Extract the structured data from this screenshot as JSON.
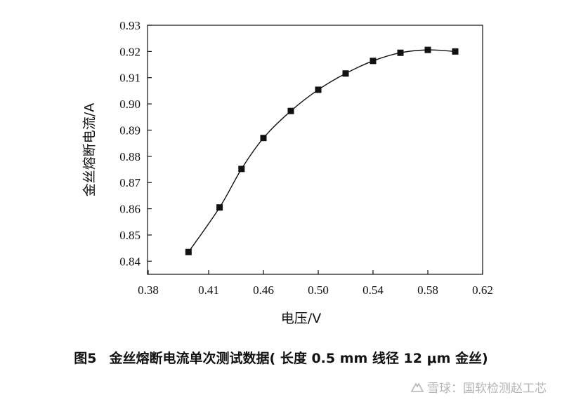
{
  "chart_data": {
    "type": "line",
    "xlabel": "电压/V",
    "ylabel": "金丝熔断电流/A",
    "xlim": [
      0.38,
      0.62
    ],
    "ylim": [
      0.835,
      0.93
    ],
    "x_ticks": [
      0.38,
      0.41,
      0.46,
      0.5,
      0.54,
      0.58,
      0.62
    ],
    "x_tick_labels": [
      "0.38",
      "0.41",
      "0.46",
      "0.50",
      "0.54",
      "0.58",
      "0.62"
    ],
    "y_ticks": [
      0.84,
      0.85,
      0.86,
      0.87,
      0.88,
      0.89,
      0.9,
      0.91,
      0.92,
      0.93
    ],
    "y_tick_labels": [
      "0.84",
      "0.85",
      "0.86",
      "0.87",
      "0.88",
      "0.89",
      "0.90",
      "0.91",
      "0.92",
      "0.93"
    ],
    "grid": false,
    "marker": "square",
    "series": [
      {
        "x": [
          0.4,
          0.42,
          0.44,
          0.46,
          0.48,
          0.5,
          0.52,
          0.54,
          0.56,
          0.58,
          0.6
        ],
        "y": [
          0.8435,
          0.8605,
          0.8752,
          0.887,
          0.8973,
          0.9054,
          0.9116,
          0.9164,
          0.9195,
          0.9206,
          0.92
        ]
      }
    ]
  },
  "caption": {
    "figure_number": "图5",
    "text": "金丝熔断电流单次测试数据( 长度 0.5 mm 线径 12 μm 金丝)"
  },
  "watermark": {
    "text": "雪球：国软检测赵工芯"
  }
}
